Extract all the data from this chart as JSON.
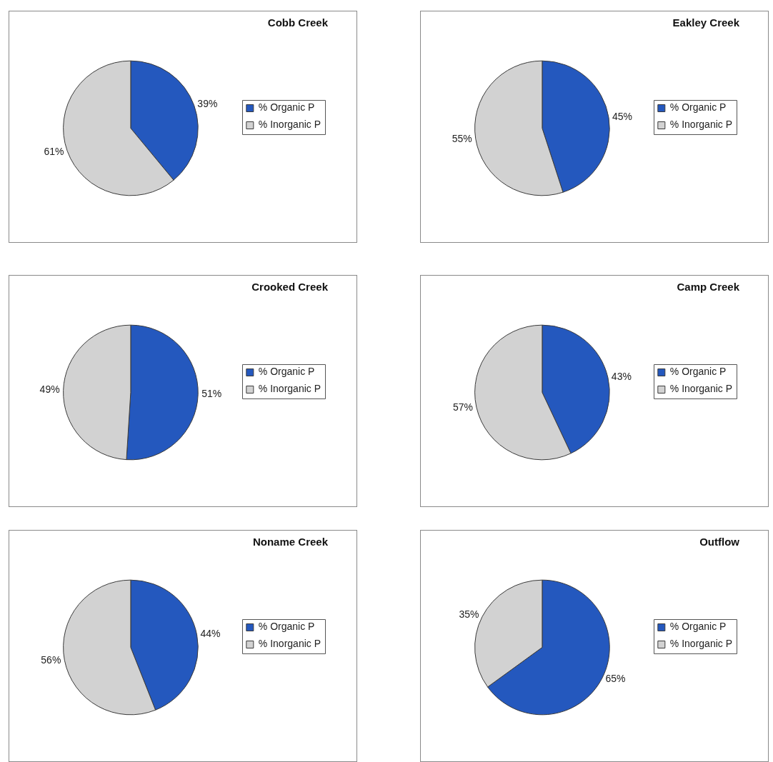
{
  "chart_data": [
    {
      "type": "pie",
      "title": "Cobb Creek",
      "categories": [
        "% Organic P",
        "% Inorganic P"
      ],
      "values": [
        39,
        61
      ],
      "colors": [
        "#2458be",
        "#d2d2d2"
      ],
      "value_labels": [
        "39%",
        "61%"
      ],
      "legend": "right"
    },
    {
      "type": "pie",
      "title": "Eakley Creek",
      "categories": [
        "% Organic P",
        "% Inorganic P"
      ],
      "values": [
        45,
        55
      ],
      "colors": [
        "#2458be",
        "#d2d2d2"
      ],
      "value_labels": [
        "45%",
        "55%"
      ],
      "legend": "right"
    },
    {
      "type": "pie",
      "title": "Crooked Creek",
      "categories": [
        "% Organic P",
        "% Inorganic P"
      ],
      "values": [
        51,
        49
      ],
      "colors": [
        "#2458be",
        "#d2d2d2"
      ],
      "value_labels": [
        "51%",
        "49%"
      ],
      "legend": "right"
    },
    {
      "type": "pie",
      "title": "Camp Creek",
      "categories": [
        "% Organic P",
        "% Inorganic P"
      ],
      "values": [
        43,
        57
      ],
      "colors": [
        "#2458be",
        "#d2d2d2"
      ],
      "value_labels": [
        "43%",
        "57%"
      ],
      "legend": "right"
    },
    {
      "type": "pie",
      "title": "Noname Creek",
      "categories": [
        "% Organic P",
        "% Inorganic P"
      ],
      "values": [
        44,
        56
      ],
      "colors": [
        "#2458be",
        "#d2d2d2"
      ],
      "value_labels": [
        "44%",
        "56%"
      ],
      "legend": "right"
    },
    {
      "type": "pie",
      "title": "Outflow",
      "categories": [
        "% Organic P",
        "% Inorganic P"
      ],
      "values": [
        65,
        35
      ],
      "colors": [
        "#2458be",
        "#d2d2d2"
      ],
      "value_labels": [
        "65%",
        "35%"
      ],
      "legend": "right"
    }
  ]
}
